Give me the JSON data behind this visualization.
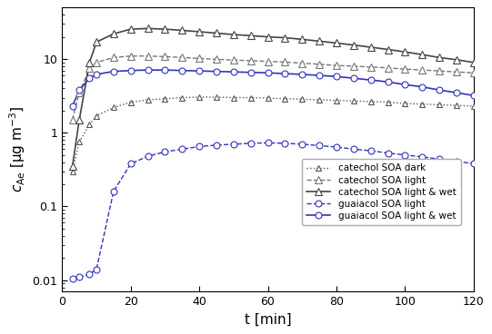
{
  "xlabel": "t [min]",
  "xlim": [
    0,
    120
  ],
  "ylim": [
    0.007,
    50
  ],
  "series": {
    "catechol_dark": {
      "t": [
        3,
        5,
        8,
        10,
        15,
        20,
        25,
        30,
        35,
        40,
        45,
        50,
        55,
        60,
        65,
        70,
        75,
        80,
        85,
        90,
        95,
        100,
        105,
        110,
        115,
        120
      ],
      "c": [
        0.3,
        0.75,
        1.3,
        1.7,
        2.2,
        2.6,
        2.8,
        2.9,
        3.0,
        3.05,
        3.05,
        3.0,
        3.0,
        2.95,
        2.9,
        2.85,
        2.8,
        2.75,
        2.7,
        2.65,
        2.6,
        2.5,
        2.45,
        2.4,
        2.35,
        2.3
      ],
      "color": "#555555",
      "linestyle": "dotted",
      "marker": "^",
      "markersize": 5,
      "markerfacecolor": "white",
      "markeredgecolor": "#555555",
      "linewidth": 1.0,
      "label": "catechol SOA dark",
      "marker_every": 2
    },
    "catechol_light": {
      "t": [
        3,
        5,
        8,
        10,
        15,
        20,
        25,
        30,
        35,
        40,
        45,
        50,
        55,
        60,
        65,
        70,
        75,
        80,
        85,
        90,
        95,
        100,
        105,
        110,
        115,
        120
      ],
      "c": [
        1.5,
        3.5,
        7.5,
        9.0,
        10.5,
        11.0,
        11.0,
        10.8,
        10.5,
        10.2,
        9.9,
        9.7,
        9.5,
        9.3,
        9.1,
        8.8,
        8.5,
        8.2,
        8.0,
        7.8,
        7.6,
        7.3,
        7.1,
        6.9,
        6.7,
        6.5
      ],
      "color": "#777777",
      "linestyle": "dashed",
      "marker": "^",
      "markersize": 6,
      "markerfacecolor": "white",
      "markeredgecolor": "#777777",
      "linewidth": 1.0,
      "label": "catechol SOA light",
      "marker_every": 2
    },
    "catechol_light_wet": {
      "t": [
        3,
        5,
        8,
        10,
        15,
        20,
        25,
        30,
        35,
        40,
        45,
        50,
        55,
        60,
        65,
        70,
        75,
        80,
        85,
        90,
        95,
        100,
        105,
        110,
        115,
        120
      ],
      "c": [
        0.35,
        1.5,
        9.0,
        17.0,
        22.0,
        25.5,
        26.0,
        25.5,
        24.5,
        23.5,
        22.5,
        21.5,
        20.8,
        20.0,
        19.5,
        18.5,
        17.5,
        16.5,
        15.5,
        14.5,
        13.5,
        12.5,
        11.5,
        10.5,
        9.8,
        9.0
      ],
      "color": "#444444",
      "linestyle": "solid",
      "marker": "^",
      "markersize": 6,
      "markerfacecolor": "white",
      "markeredgecolor": "#444444",
      "linewidth": 1.2,
      "label": "catechol SOA light & wet",
      "marker_every": 2
    },
    "guaiacol_light": {
      "t": [
        3,
        5,
        8,
        10,
        15,
        20,
        25,
        30,
        35,
        40,
        45,
        50,
        55,
        60,
        65,
        70,
        75,
        80,
        85,
        90,
        95,
        100,
        105,
        110,
        115,
        120
      ],
      "c": [
        0.0105,
        0.011,
        0.012,
        0.014,
        0.16,
        0.38,
        0.48,
        0.55,
        0.6,
        0.65,
        0.68,
        0.7,
        0.72,
        0.73,
        0.72,
        0.7,
        0.67,
        0.64,
        0.6,
        0.57,
        0.53,
        0.5,
        0.47,
        0.44,
        0.41,
        0.38
      ],
      "color": "#3333bb",
      "linestyle": "dashed",
      "marker": "o",
      "markersize": 5,
      "markerfacecolor": "white",
      "markeredgecolor": "#3333bb",
      "linewidth": 1.0,
      "label": "guaiacol SOA light",
      "marker_every": 2
    },
    "guaiacol_light_wet": {
      "t": [
        3,
        5,
        8,
        10,
        15,
        20,
        25,
        30,
        35,
        40,
        45,
        50,
        55,
        60,
        65,
        70,
        75,
        80,
        85,
        90,
        95,
        100,
        105,
        110,
        115,
        120
      ],
      "c": [
        2.3,
        3.8,
        5.5,
        6.2,
        6.8,
        7.0,
        7.1,
        7.1,
        7.0,
        6.9,
        6.8,
        6.7,
        6.6,
        6.5,
        6.35,
        6.2,
        6.0,
        5.8,
        5.5,
        5.2,
        4.9,
        4.5,
        4.2,
        3.8,
        3.5,
        3.2
      ],
      "color": "#3333bb",
      "linestyle": "solid",
      "marker": "o",
      "markersize": 5,
      "markerfacecolor": "white",
      "markeredgecolor": "#3333bb",
      "linewidth": 1.2,
      "label": "guaiacol SOA light & wet",
      "marker_every": 2
    }
  },
  "legend_fontsize": 7.5,
  "tick_fontsize": 9,
  "label_fontsize": 11,
  "yticks": [
    0.01,
    0.1,
    1,
    10
  ],
  "xticks": [
    0,
    20,
    40,
    60,
    80,
    100,
    120
  ]
}
